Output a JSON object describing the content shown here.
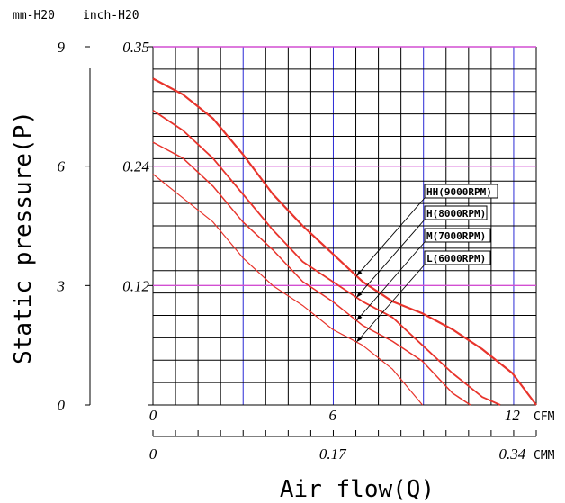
{
  "header": {
    "unit_left": "mm-H20",
    "unit_right": "inch-H20"
  },
  "ylabel": "Static pressure(P)",
  "xlabel": "Air flow(Q)",
  "colors": {
    "grid": "#000000",
    "blue_grid": "#2b2bd6",
    "magenta_grid": "#d24fd2",
    "curve": "#e8342c"
  },
  "chart_data": {
    "type": "line",
    "title": "",
    "xlabel": "Air flow(Q)",
    "ylabel": "Static pressure(P)",
    "x_unit": "CFM",
    "y_unit": "mm-H20",
    "xlim": [
      0,
      12.8
    ],
    "ylim": [
      0,
      9
    ],
    "grid": true,
    "mm_axis": {
      "ticks": [
        "0",
        "3",
        "6",
        "9"
      ],
      "values": [
        0,
        3,
        6,
        9
      ]
    },
    "inch_axis": {
      "ticks": [
        "0",
        "0.12",
        "0.24",
        "0.35"
      ],
      "values": [
        0,
        3,
        6,
        9
      ]
    },
    "cfm_axis": {
      "ticks": [
        "0",
        "6",
        "12"
      ],
      "values": [
        0,
        6,
        12
      ],
      "unit": "CFM"
    },
    "cmm_axis": {
      "ticks": [
        "0",
        "0.17",
        "0.34"
      ],
      "values": [
        0,
        6,
        12
      ],
      "unit": "CMM"
    },
    "series": [
      {
        "name": "HH(9000RPM)",
        "x": [
          0,
          1,
          2,
          3,
          4,
          5,
          6,
          7,
          8,
          9,
          10,
          11,
          12,
          12.8
        ],
        "y": [
          8.2,
          7.8,
          7.2,
          6.3,
          5.3,
          4.5,
          3.8,
          3.1,
          2.6,
          2.3,
          1.9,
          1.4,
          0.8,
          0
        ]
      },
      {
        "name": "H(8000RPM)",
        "x": [
          0,
          1,
          2,
          3,
          4,
          5,
          6,
          7,
          8,
          9,
          10,
          11,
          11.6
        ],
        "y": [
          7.4,
          6.9,
          6.2,
          5.3,
          4.4,
          3.6,
          3.1,
          2.6,
          2.2,
          1.5,
          0.8,
          0.2,
          0
        ]
      },
      {
        "name": "M(7000RPM)",
        "x": [
          0,
          1,
          2,
          3,
          4,
          5,
          6,
          7,
          8,
          9,
          10,
          10.6
        ],
        "y": [
          6.6,
          6.2,
          5.5,
          4.6,
          3.9,
          3.1,
          2.6,
          2.0,
          1.6,
          1.1,
          0.3,
          0
        ]
      },
      {
        "name": "L(6000RPM)",
        "x": [
          0,
          1,
          2,
          3,
          4,
          5,
          6,
          7,
          8,
          9.0
        ],
        "y": [
          5.8,
          5.2,
          4.6,
          3.7,
          3.0,
          2.5,
          1.9,
          1.5,
          0.9,
          0
        ]
      }
    ],
    "annotations": [
      "HH(9000RPM)",
      "H(8000RPM)",
      "M(7000RPM)",
      "L(6000RPM)"
    ]
  }
}
